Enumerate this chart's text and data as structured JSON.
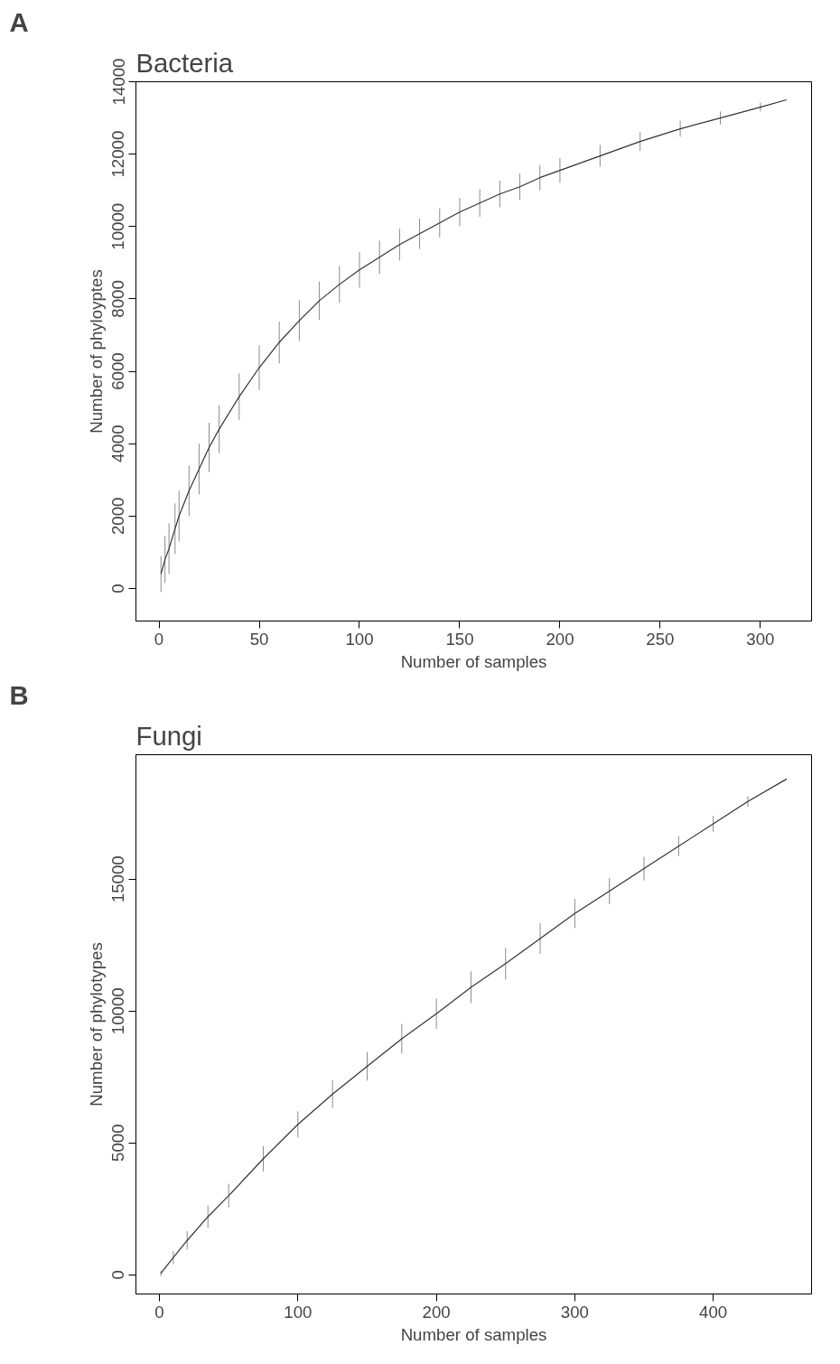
{
  "chart_data": [
    {
      "type": "line",
      "title": "Bacteria",
      "annotations": [
        "A"
      ],
      "xlabel": "Number of samples",
      "ylabel": "Number of phyloyptes",
      "grid": false,
      "x": [
        1,
        3,
        5,
        8,
        10,
        15,
        20,
        25,
        30,
        40,
        50,
        60,
        70,
        80,
        90,
        100,
        110,
        120,
        130,
        140,
        150,
        160,
        170,
        180,
        190,
        200,
        220,
        240,
        260,
        280,
        300,
        313
      ],
      "series": [
        {
          "color": "#333333",
          "values": [
            400,
            800,
            1100,
            1650,
            2000,
            2700,
            3300,
            3900,
            4400,
            5300,
            6100,
            6800,
            7400,
            7950,
            8400,
            8800,
            9150,
            9500,
            9800,
            10100,
            10400,
            10650,
            10900,
            11100,
            11350,
            11550,
            11950,
            12350,
            12700,
            13000,
            13300,
            13500
          ],
          "errors": [
            500,
            650,
            700,
            700,
            700,
            700,
            700,
            680,
            660,
            640,
            620,
            580,
            560,
            530,
            510,
            490,
            460,
            440,
            420,
            400,
            390,
            380,
            370,
            360,
            350,
            340,
            300,
            260,
            220,
            180,
            120,
            0
          ]
        }
      ],
      "xlim": [
        -11.5,
        325.5
      ],
      "xticks": [
        0,
        50,
        100,
        150,
        200,
        250,
        300
      ],
      "ylim": [
        -900,
        14000
      ],
      "yticks": [
        0,
        2000,
        4000,
        6000,
        8000,
        10000,
        12000,
        14000
      ]
    },
    {
      "type": "line",
      "title": "Fungi",
      "annotations": [
        "B"
      ],
      "xlabel": "Number of samples",
      "ylabel": "Number of phylotypes",
      "grid": false,
      "x": [
        1,
        10,
        20,
        35,
        50,
        75,
        100,
        125,
        150,
        175,
        200,
        225,
        250,
        275,
        300,
        325,
        350,
        375,
        400,
        425,
        453
      ],
      "series": [
        {
          "color": "#333333",
          "values": [
            50,
            650,
            1300,
            2200,
            3000,
            4400,
            5700,
            6850,
            7900,
            8950,
            9900,
            10900,
            11800,
            12750,
            13700,
            14550,
            15400,
            16250,
            17100,
            17950,
            18800
          ],
          "errors": [
            100,
            250,
            350,
            420,
            450,
            480,
            500,
            520,
            540,
            560,
            580,
            600,
            600,
            580,
            550,
            500,
            450,
            380,
            300,
            200,
            0
          ]
        }
      ],
      "xlim": [
        -17,
        471
      ],
      "xticks": [
        0,
        100,
        200,
        300,
        400
      ],
      "ylim": [
        -730,
        19720
      ],
      "yticks": [
        0,
        5000,
        10000,
        15000
      ]
    }
  ]
}
